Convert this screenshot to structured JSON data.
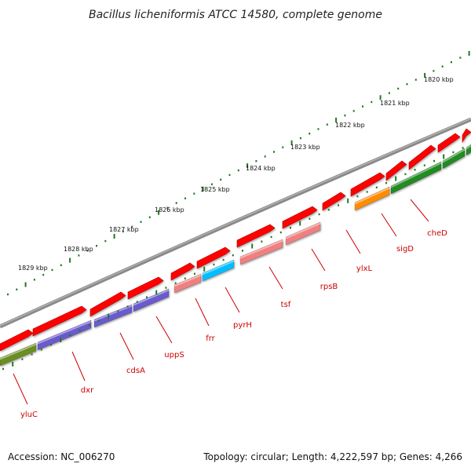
{
  "title": "Bacillus licheniformis ATCC 14580, complete genome",
  "footer": {
    "accession": "Accession: NC_006270",
    "topology": "Topology: circular; Length: 4,222,597 bp; Genes: 4,266"
  },
  "colors": {
    "backbone": "#777777",
    "ticks": "#1e7a1e",
    "cds": "#ff0000",
    "label": "#cc0000",
    "genes": {
      "yluC": "#6b8e23",
      "dxr": "#6a5acd",
      "cdsA": "#6a5acd",
      "uppS": "#6a5acd",
      "frr": "#f08080",
      "pyrH": "#00bfff",
      "tsf": "#f08080",
      "rpsB": "#f08080",
      "ylxL": "#ff0000",
      "sigD": "#ff8c00",
      "cheD": "#228b22"
    }
  },
  "tick_labels": [
    "1820 kbp",
    "1821 kbp",
    "1822 kbp",
    "1823 kbp",
    "1824 kbp",
    "1825 kbp",
    "1826 kbp",
    "1827 kbp",
    "1828 kbp",
    "1829 kbp"
  ],
  "genes": [
    "yluC",
    "dxr",
    "cdsA",
    "uppS",
    "frr",
    "pyrH",
    "tsf",
    "rpsB",
    "ylxL",
    "sigD",
    "cheD"
  ]
}
